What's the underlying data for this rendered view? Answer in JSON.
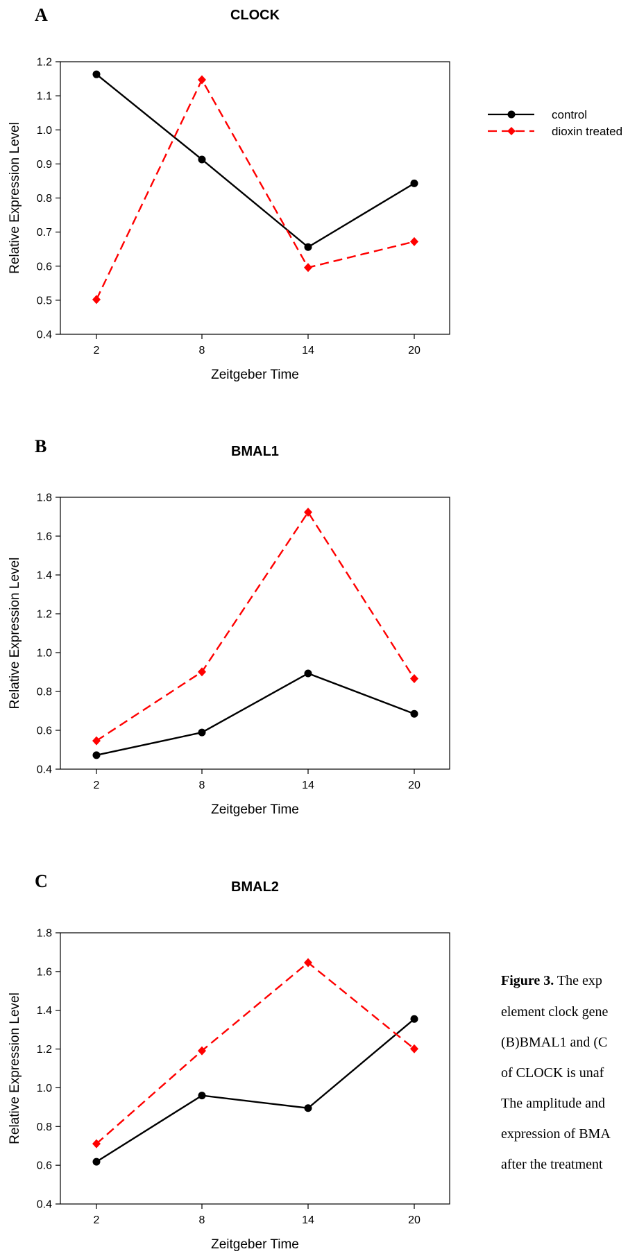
{
  "legend": {
    "entries": [
      {
        "label": "control",
        "color": "#000000",
        "marker": "circle",
        "dash": "solid"
      },
      {
        "label": "dioxin treated",
        "color": "#ff0000",
        "marker": "diamond",
        "dash": "dashed"
      }
    ]
  },
  "caption": {
    "lines": [
      {
        "bold": "Figure 3.",
        "text": " The exp"
      },
      {
        "bold": "",
        "text": "element clock gene"
      },
      {
        "bold": "",
        "text": "(B)BMAL1 and (C"
      },
      {
        "bold": "",
        "text": "of CLOCK is unaf"
      },
      {
        "bold": "",
        "text": "The amplitude and"
      },
      {
        "bold": "",
        "text": "expression of BMA"
      },
      {
        "bold": "",
        "text": "after the treatment"
      }
    ]
  },
  "chart_data": [
    {
      "panel": "A",
      "type": "line",
      "title": "CLOCK",
      "xlabel": "Zeitgeber Time",
      "ylabel": "Relative Expression Level",
      "x": [
        2,
        8,
        14,
        20
      ],
      "ylim": [
        0.4,
        1.2
      ],
      "yticks": [
        "0.4",
        "0.5",
        "0.6",
        "0.7",
        "0.8",
        "0.9",
        "1.0",
        "1.1",
        "1.2"
      ],
      "series": [
        {
          "name": "control",
          "values": [
            1.163,
            0.913,
            0.656,
            0.843
          ]
        },
        {
          "name": "dioxin treated",
          "values": [
            0.502,
            1.147,
            0.596,
            0.672
          ]
        }
      ]
    },
    {
      "panel": "B",
      "type": "line",
      "title": "BMAL1",
      "xlabel": "Zeitgeber Time",
      "ylabel": "Relative Expression Level",
      "x": [
        2,
        8,
        14,
        20
      ],
      "ylim": [
        0.4,
        1.8
      ],
      "yticks": [
        "0.4",
        "0.6",
        "0.8",
        "1.0",
        "1.2",
        "1.4",
        "1.6",
        "1.8"
      ],
      "series": [
        {
          "name": "control",
          "values": [
            0.472,
            0.589,
            0.893,
            0.685
          ]
        },
        {
          "name": "dioxin treated",
          "values": [
            0.546,
            0.901,
            1.723,
            0.866
          ]
        }
      ]
    },
    {
      "panel": "C",
      "type": "line",
      "title": "BMAL2",
      "xlabel": "Zeitgeber Time",
      "ylabel": "Relative Expression Level",
      "x": [
        2,
        8,
        14,
        20
      ],
      "ylim": [
        0.4,
        1.8
      ],
      "yticks": [
        "0.4",
        "0.6",
        "0.8",
        "1.0",
        "1.2",
        "1.4",
        "1.6",
        "1.8"
      ],
      "series": [
        {
          "name": "control",
          "values": [
            0.618,
            0.96,
            0.895,
            1.355
          ]
        },
        {
          "name": "dioxin treated",
          "values": [
            0.711,
            1.191,
            1.646,
            1.201
          ]
        }
      ]
    }
  ]
}
